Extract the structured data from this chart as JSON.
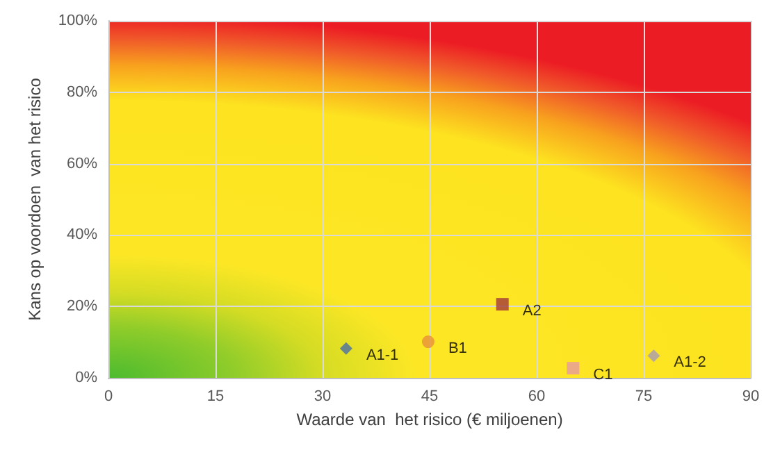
{
  "chart_data": {
    "type": "scatter",
    "xlabel": "Waarde van  het risico (€ miljoenen)",
    "ylabel": "Kans op voordoen  van het risico",
    "xlim": [
      0,
      90
    ],
    "xticks": [
      0,
      15,
      30,
      45,
      60,
      75,
      90
    ],
    "ylim": [
      0,
      100
    ],
    "yticks": [
      {
        "value": 0,
        "label": "0%"
      },
      {
        "value": 20,
        "label": "20%"
      },
      {
        "value": 40,
        "label": "40%"
      },
      {
        "value": 60,
        "label": "60%"
      },
      {
        "value": 80,
        "label": "80%"
      },
      {
        "value": 100,
        "label": "100%"
      }
    ],
    "grid": true,
    "legend": false,
    "series": [
      {
        "name": "A1-1",
        "color": "#4a6fa5",
        "marker": "diamond",
        "x": [
          33.3
        ],
        "values": [
          8.2
        ]
      },
      {
        "name": "B1",
        "color": "#e8913a",
        "marker": "circle",
        "x": [
          44.8
        ],
        "values": [
          10.1
        ]
      },
      {
        "name": "A2",
        "color": "#a33a3a",
        "marker": "square",
        "x": [
          55.2
        ],
        "values": [
          20.6
        ]
      },
      {
        "name": "C1",
        "color": "#e69aa0",
        "marker": "square",
        "x": [
          65.1
        ],
        "values": [
          2.7
        ]
      },
      {
        "name": "A1-2",
        "color": "#a69bb5",
        "marker": "diamond",
        "x": [
          76.4
        ],
        "values": [
          6.2
        ]
      }
    ]
  }
}
